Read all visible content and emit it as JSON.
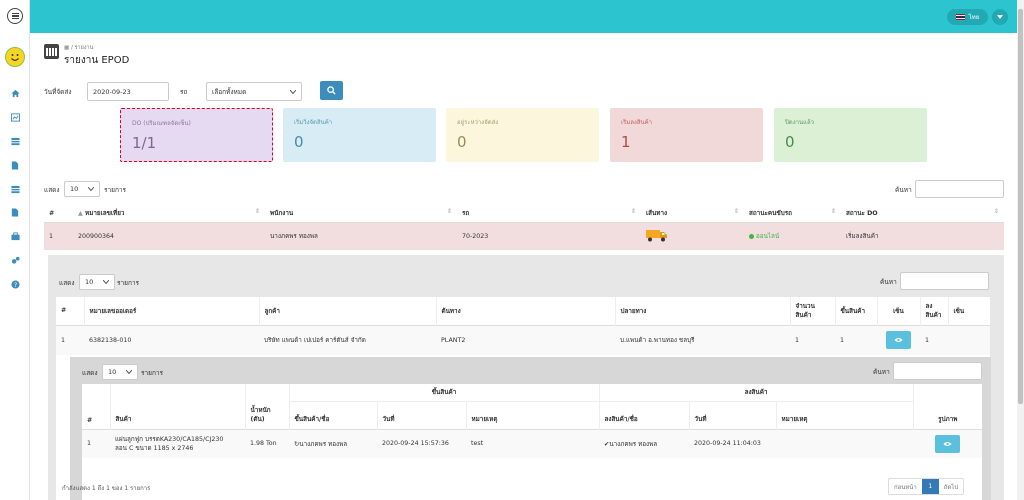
{
  "topbar": {
    "language": "ไทย"
  },
  "page": {
    "breadcrumb": "รายงาน",
    "title": "รายงาน EPOD"
  },
  "filters": {
    "date_label": "วันที่จัดส่ง",
    "date_value": "2020-09-23",
    "vehicle_label": "รถ",
    "vehicle_value": "เลือกทั้งหมด"
  },
  "cards": [
    {
      "label": "DO (ปริมณฑลจัดเซ็น)",
      "value": "1/1",
      "bg": "#e6d9f2",
      "fg": "#7a6b8a"
    },
    {
      "label": "เริ่มวิ่งจัดสินค้า",
      "value": "0",
      "bg": "#d7ecf5",
      "fg": "#4a8aa6"
    },
    {
      "label": "อยู่ระหว่างจัดส่ง",
      "value": "0",
      "bg": "#fcf6dc",
      "fg": "#9a8a5a"
    },
    {
      "label": "เริ่มลงสินค้า",
      "value": "1",
      "bg": "#f2d9d9",
      "fg": "#b04a4a"
    },
    {
      "label": "ปิดงานแล้ว",
      "value": "0",
      "bg": "#dcf0d5",
      "fg": "#4a8a4a"
    }
  ],
  "main_table": {
    "show_label": "แสดง",
    "page_size": "10",
    "rows_label": "รายการ",
    "search_label": "ค้นหา",
    "headers": [
      "#",
      "หมายเลขเที่ยว",
      "พนักงาน",
      "รถ",
      "เส้นทาง",
      "สถานะคนขับรถ",
      "สถานะ DO"
    ],
    "rows": [
      {
        "no": "1",
        "trip": "200900364",
        "staff": "นางภคพร ทองพล",
        "vehicle": "70-2023",
        "driver_status": "ออนไลน์",
        "do_status": "เริ่มลงสินค้า"
      }
    ]
  },
  "order_table": {
    "show_label": "แสดง",
    "page_size": "10",
    "rows_label": "รายการ",
    "search_label": "ค้นหา",
    "headers": [
      "#",
      "หมายเลขออเดอร์",
      "ลูกค้า",
      "ต้นทาง",
      "ปลายทาง",
      "จำนวน",
      "สินค้า",
      "ขึ้นสินค้า",
      "เซ็น",
      "ลง",
      "สินค้า",
      "เซ็น"
    ],
    "rows": [
      {
        "no": "1",
        "order": "6382138-010",
        "customer": "บริษัท แพนด้า เปเปอร์ คาร์ตันส์ จำกัด",
        "origin": "PLANT2",
        "destination": "บ.แพนด้า อ.พานทอง ชลบุรี",
        "qty": "1",
        "loaded": "1",
        "unloaded": "1"
      }
    ]
  },
  "item_table": {
    "show_label": "แสดง",
    "page_size": "10",
    "rows_label": "รายการ",
    "search_label": "ค้นหา",
    "group_load": "ขึ้นสินค้า",
    "group_unload": "ลงสินค้า",
    "headers": [
      "#",
      "สินค้า",
      "น้ำหนัก",
      "(ตัน)",
      "ขึ้นสินค้า/ชื่อ",
      "วันที่",
      "หมายเหตุ",
      "ลงสินค้า/ชื่อ",
      "วันที่",
      "หมายเหตุ",
      "รูปภาพ"
    ],
    "rows": [
      {
        "no": "1",
        "product_line1": "แผ่นลูกฟูก บรรดKA230/CA185/CJ230",
        "product_line2": "ลอน C ขนาด 1185 x 2746",
        "weight": "1.98 Ton",
        "load_by": "นางภคพร ทองพล",
        "load_date": "2020-09-24 15:57:36",
        "load_note": "test",
        "unload_by": "นางภคพร ทองพล",
        "unload_date": "2020-09-24 11:04:03",
        "unload_note": ""
      }
    ],
    "footer_info": "กำลังแสดง 1 ถึง 1 ของ 1 รายการ",
    "pager": {
      "prev": "ก่อนหน้า",
      "current": "1",
      "next": "ถัดไป"
    }
  }
}
